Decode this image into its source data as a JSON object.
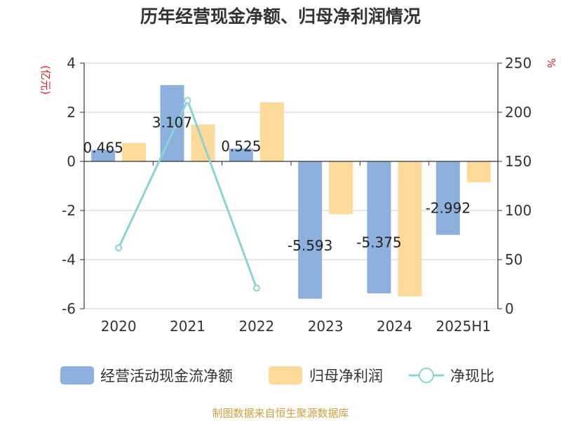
{
  "chart_data": {
    "type": "bar",
    "title": "历年经营现金净额、归母净利润情况",
    "categories": [
      "2020",
      "2021",
      "2022",
      "2023",
      "2024",
      "2025H1"
    ],
    "y_left": {
      "label": "(亿元)",
      "ylim": [
        -6,
        4
      ],
      "ticks": [
        4,
        2,
        0,
        -2,
        -4,
        -6
      ]
    },
    "y_right": {
      "label": "%",
      "ylim": [
        0,
        250
      ],
      "ticks": [
        250,
        200,
        150,
        100,
        50,
        0
      ]
    },
    "series": [
      {
        "name": "经营活动现金流净额",
        "type": "bar",
        "axis": "left",
        "color": "#8eb0dc",
        "values": [
          0.465,
          3.107,
          0.525,
          -5.593,
          -5.375,
          -2.992
        ],
        "labels": [
          "0.465",
          "3.107",
          "0.525",
          "-5.593",
          "-5.375",
          "-2.992"
        ]
      },
      {
        "name": "归母净利润",
        "type": "bar",
        "axis": "left",
        "color": "#fdd99a",
        "values": [
          0.75,
          1.5,
          2.4,
          -2.15,
          -5.5,
          -0.85
        ]
      },
      {
        "name": "净现比",
        "type": "line",
        "axis": "right",
        "color": "#8ad3d6",
        "values": [
          62,
          212,
          21,
          null,
          null,
          null
        ]
      }
    ],
    "legend_position": "bottom",
    "grid": true
  },
  "source": "制图数据来自恒生聚源数据库",
  "colors": {
    "title": "#333333",
    "axis_unit": "#e02020",
    "source": "#c9a23c"
  }
}
